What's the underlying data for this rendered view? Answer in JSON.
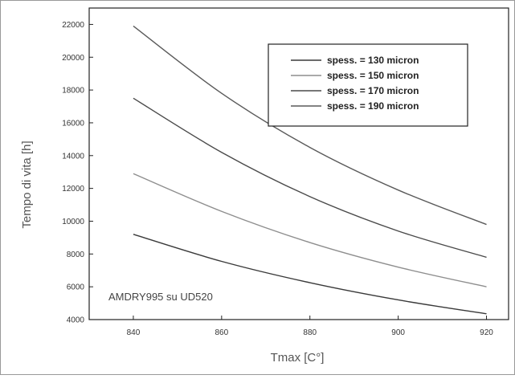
{
  "chart_data": {
    "type": "line",
    "title": "",
    "xlabel": "Tmax [C°]",
    "ylabel": "Tempo di vita [h]",
    "annotation": "AMDRY995 su UD520",
    "xlim": [
      830,
      925
    ],
    "ylim": [
      4000,
      23000
    ],
    "xticks": [
      840,
      860,
      880,
      900,
      920
    ],
    "yticks": [
      4000,
      6000,
      8000,
      10000,
      12000,
      14000,
      16000,
      18000,
      20000,
      22000
    ],
    "grid": false,
    "legend_position": "top-right",
    "x": [
      840,
      860,
      880,
      900,
      920
    ],
    "series": [
      {
        "name": "spess. = 130 micron",
        "values": [
          9200,
          7550,
          6250,
          5200,
          4350
        ],
        "color": "#3a3a3a"
      },
      {
        "name": "spess. = 150 micron",
        "values": [
          12900,
          10600,
          8700,
          7200,
          6000
        ],
        "color": "#8e8e8e"
      },
      {
        "name": "spess. = 170 micron",
        "values": [
          17500,
          14200,
          11500,
          9400,
          7800
        ],
        "color": "#4a4a4a"
      },
      {
        "name": "spess. = 190 micron",
        "values": [
          21900,
          17800,
          14500,
          11900,
          9800
        ],
        "color": "#5a5a5a"
      }
    ]
  }
}
